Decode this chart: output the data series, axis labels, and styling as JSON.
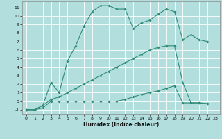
{
  "xlabel": "Humidex (Indice chaleur)",
  "bg_color": "#b2dede",
  "grid_color": "#ffffff",
  "line_color": "#2e8b7a",
  "xlim": [
    -0.5,
    23.5
  ],
  "ylim": [
    -1.5,
    11.7
  ],
  "xticks": [
    0,
    1,
    2,
    3,
    4,
    5,
    6,
    7,
    8,
    9,
    10,
    11,
    12,
    13,
    14,
    15,
    16,
    17,
    18,
    19,
    20,
    21,
    22,
    23
  ],
  "yticks": [
    -1,
    0,
    1,
    2,
    3,
    4,
    5,
    6,
    7,
    8,
    9,
    10,
    11
  ],
  "series": [
    {
      "x": [
        0,
        1,
        2,
        3,
        4,
        5,
        6,
        7,
        8,
        9,
        10,
        11,
        12,
        13,
        14,
        15,
        16,
        17,
        18,
        19,
        20,
        21,
        22
      ],
      "y": [
        -1,
        -1,
        -0.5,
        2.2,
        1.0,
        4.7,
        6.5,
        8.8,
        10.5,
        11.2,
        11.2,
        10.8,
        10.8,
        8.5,
        9.2,
        9.5,
        10.2,
        10.8,
        10.5,
        7.2,
        7.8,
        7.2,
        7.0
      ]
    },
    {
      "x": [
        0,
        1,
        2,
        3,
        4,
        5,
        6,
        7,
        8,
        9,
        10,
        11,
        12,
        13,
        14,
        15,
        16,
        17,
        18,
        19,
        20,
        21,
        22
      ],
      "y": [
        -1,
        -1,
        -0.5,
        0.2,
        0.5,
        1.0,
        1.5,
        2.0,
        2.5,
        3.0,
        3.5,
        4.0,
        4.5,
        5.0,
        5.5,
        6.0,
        6.3,
        6.5,
        6.5,
        2.2,
        -0.2,
        -0.2,
        -0.3
      ]
    },
    {
      "x": [
        0,
        1,
        2,
        3,
        4,
        5,
        6,
        7,
        8,
        9,
        10,
        11,
        12,
        13,
        14,
        15,
        16,
        17,
        18,
        19,
        20,
        21,
        22
      ],
      "y": [
        -1,
        -1,
        -0.8,
        0.0,
        0.0,
        0.0,
        0.0,
        0.0,
        0.0,
        0.0,
        0.0,
        0.0,
        0.2,
        0.5,
        0.8,
        1.0,
        1.2,
        1.5,
        1.8,
        -0.2,
        -0.2,
        -0.2,
        -0.3
      ]
    }
  ]
}
